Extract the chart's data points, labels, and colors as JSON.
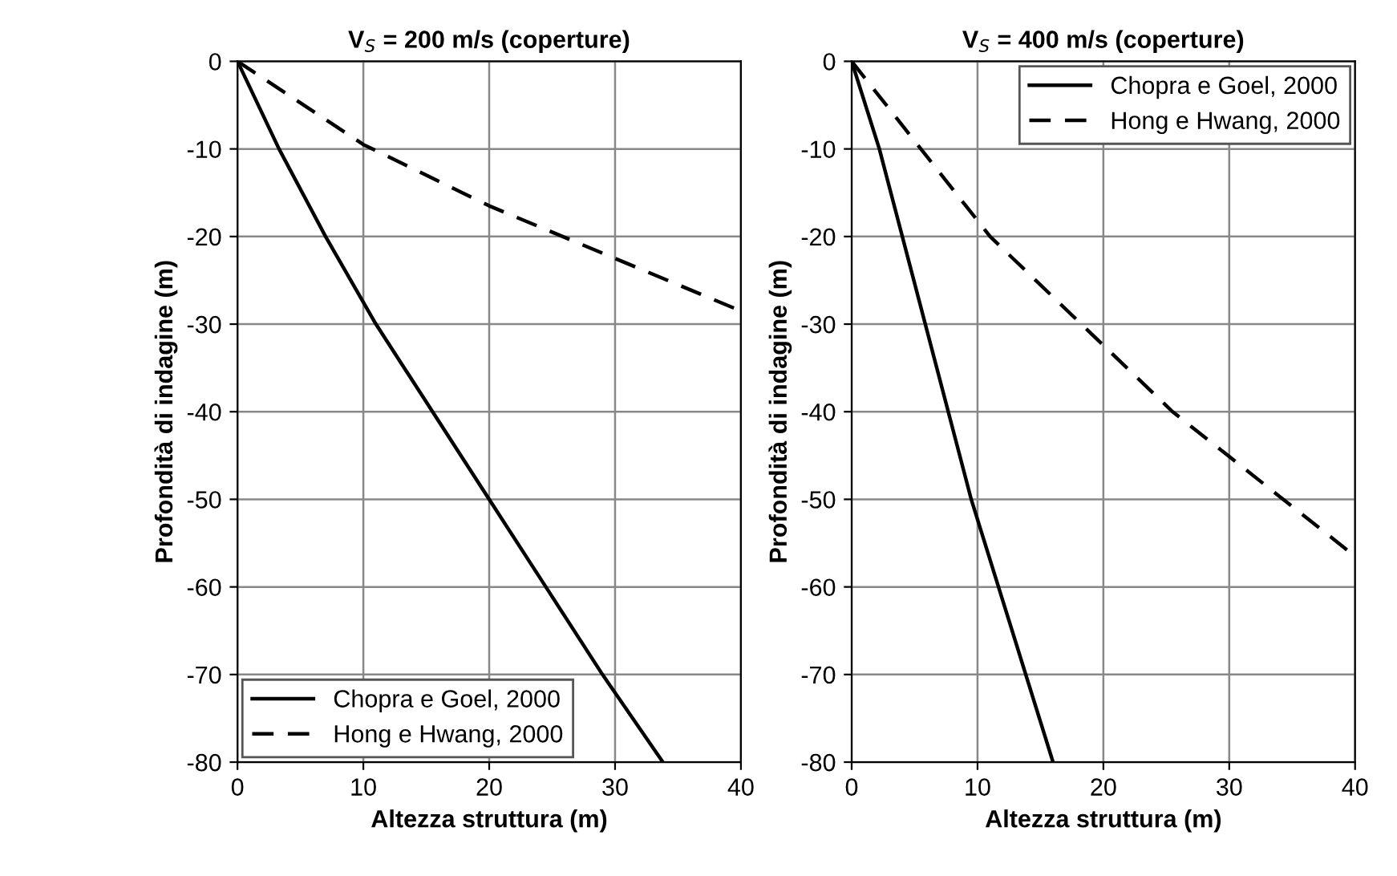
{
  "chart_data": [
    {
      "type": "line",
      "title": "V$_{S}$ = 200 m/s (coperture)",
      "xlabel": "Altezza struttura (m)",
      "ylabel": "Profondità di indagine (m)",
      "xlim": [
        0,
        40
      ],
      "ylim": [
        -80,
        0
      ],
      "xticks": [
        0,
        10,
        20,
        30,
        40
      ],
      "yticks": [
        0,
        -10,
        -20,
        -30,
        -40,
        -50,
        -60,
        -70,
        -80
      ],
      "grid": true,
      "legend": "bottom left",
      "series": [
        {
          "name": "Chopra e Goel, 2000",
          "color": "#000000",
          "line_style": "solid",
          "x": [
            0,
            3.3,
            7,
            11,
            15.5,
            20,
            24.5,
            29,
            33.8
          ],
          "values": [
            0,
            -10,
            -20,
            -30,
            -40,
            -50,
            -60,
            -70,
            -80
          ]
        },
        {
          "name": "Hong e Hwang, 2000",
          "color": "#000000",
          "line_style": "dashed",
          "x": [
            0,
            10,
            20,
            30,
            40
          ],
          "values": [
            0,
            -9.5,
            -16.5,
            -22.5,
            -28.5
          ]
        }
      ]
    },
    {
      "type": "line",
      "title": "V$_{S}$ = 400 m/s (coperture)",
      "xlabel": "Altezza struttura (m)",
      "ylabel": "Profondità di indagine (m)",
      "xlim": [
        0,
        40
      ],
      "ylim": [
        -80,
        0
      ],
      "xticks": [
        0,
        10,
        20,
        30,
        40
      ],
      "yticks": [
        0,
        -10,
        -20,
        -30,
        -40,
        -50,
        -60,
        -70,
        -80
      ],
      "grid": true,
      "legend": "top right",
      "series": [
        {
          "name": "Chopra e Goel, 2000",
          "color": "#000000",
          "line_style": "solid",
          "x": [
            0,
            2.2,
            9.5,
            16
          ],
          "values": [
            0,
            -10,
            -50,
            -80
          ]
        },
        {
          "name": "Hong e Hwang, 2000",
          "color": "#000000",
          "line_style": "dashed",
          "x": [
            0,
            11,
            25.5,
            40
          ],
          "values": [
            0,
            -20,
            -40,
            -56.5
          ]
        }
      ]
    }
  ]
}
